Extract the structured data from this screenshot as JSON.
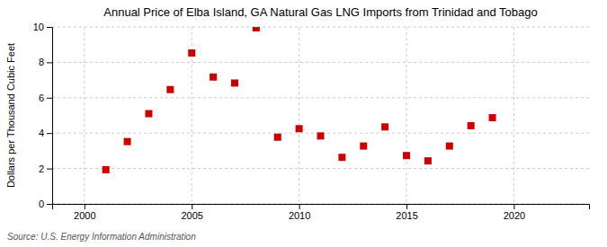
{
  "chart_data": {
    "type": "scatter",
    "title": "Annual Price of Elba Island, GA Natural Gas LNG Imports from Trinidad and Tobago",
    "ylabel": "Dollars per Thousand Cubic Feet",
    "annotations": [
      "Source: U.S. Energy Information Administration"
    ],
    "x": [
      2001,
      2002,
      2003,
      2004,
      2005,
      2006,
      2007,
      2008,
      2009,
      2010,
      2011,
      2012,
      2013,
      2014,
      2015,
      2016,
      2017,
      2018,
      2019
    ],
    "values": [
      1.93,
      3.52,
      5.1,
      6.46,
      8.53,
      7.17,
      6.83,
      9.95,
      3.77,
      4.25,
      3.84,
      2.63,
      3.27,
      4.35,
      2.73,
      2.43,
      3.27,
      4.42,
      4.87
    ],
    "color": "#cc0000",
    "marker": "square",
    "xlim": [
      1998.5,
      2023.5
    ],
    "ylim": [
      0,
      10
    ],
    "xticks": [
      2000,
      2005,
      2010,
      2015,
      2020
    ],
    "yticks": [
      0,
      2,
      4,
      6,
      8,
      10
    ],
    "grid": true
  }
}
